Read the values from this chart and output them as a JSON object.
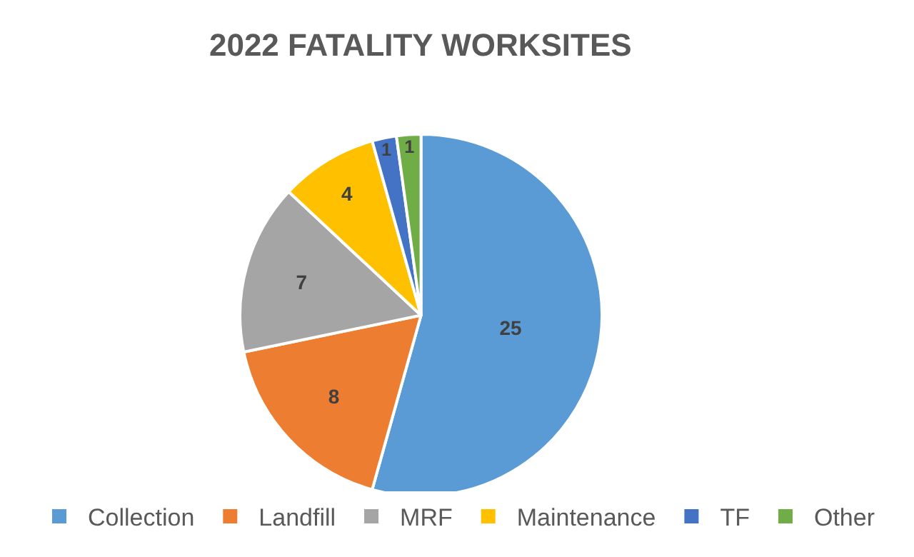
{
  "chart_data": {
    "type": "pie",
    "title": "2022 FATALITY WORKSITES",
    "categories": [
      "Collection",
      "Landfill",
      "MRF",
      "Maintenance",
      "TF",
      "Other"
    ],
    "values": [
      25,
      8,
      7,
      4,
      1,
      1
    ],
    "colors": [
      "#5b9bd5",
      "#ed7d31",
      "#a5a5a5",
      "#ffc000",
      "#4472c4",
      "#70ad47"
    ],
    "data_labels": true,
    "legend": "bottom"
  }
}
